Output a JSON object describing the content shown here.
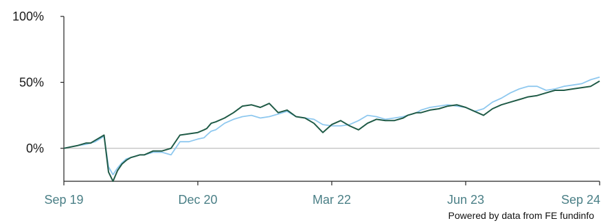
{
  "chart_data": {
    "type": "line",
    "x_start": "2019-09",
    "x_end": "2024-09",
    "x_ticks": [
      "Sep 19",
      "Dec 20",
      "Mar 22",
      "Jun 23",
      "Sep 24"
    ],
    "y_ticks": [
      "100%",
      "50%",
      "0%"
    ],
    "ylim": [
      -25,
      100
    ],
    "zero_line": true,
    "series": [
      {
        "color": "#1f5a46",
        "x": [
          0,
          1.5,
          2.5,
          3,
          3.5,
          4,
          4.5,
          5,
          5.5,
          6,
          6.5,
          7,
          7.5,
          8,
          8.5,
          9,
          10,
          11,
          12,
          13,
          14,
          15,
          15.7,
          16,
          16.5,
          17,
          18,
          19,
          20,
          21,
          22,
          23,
          24,
          25,
          26,
          27,
          28,
          29,
          30,
          31,
          32,
          33,
          34,
          35,
          36,
          37,
          38,
          38.5,
          39,
          39.5,
          40,
          41,
          42,
          43,
          44,
          45,
          46,
          47,
          48,
          49,
          50,
          51,
          52,
          53,
          54,
          55,
          56,
          57,
          58,
          59,
          60
        ],
        "y": [
          0,
          2,
          4,
          4,
          6,
          8,
          10,
          -18,
          -25,
          -17,
          -12,
          -9,
          -7,
          -6,
          -5,
          -5,
          -2,
          -2,
          0,
          10,
          11,
          12,
          14,
          15,
          19,
          20,
          23,
          27,
          32,
          33,
          31,
          34,
          27,
          29,
          24,
          23,
          19,
          12,
          18,
          21,
          17,
          14,
          19,
          22,
          21,
          21,
          23,
          25,
          26,
          27,
          27,
          29,
          30,
          32,
          33,
          31,
          28,
          25,
          30,
          33,
          35,
          37,
          39,
          40,
          42,
          44,
          44,
          45,
          46,
          47,
          51
        ]
      },
      {
        "color": "#8ec8ef",
        "x": [
          0,
          1.5,
          2.5,
          3,
          3.5,
          4,
          4.5,
          5,
          5.5,
          6,
          6.5,
          7,
          7.5,
          8,
          8.5,
          9,
          10,
          11,
          12,
          13,
          14,
          15,
          15.7,
          16,
          16.5,
          17,
          18,
          19,
          20,
          21,
          22,
          23,
          24,
          25,
          26,
          27,
          28,
          29,
          30,
          31,
          32,
          33,
          34,
          35,
          36,
          37,
          38,
          38.5,
          39,
          39.5,
          40,
          41,
          42,
          43,
          44,
          45,
          46,
          47,
          48,
          49,
          50,
          51,
          52,
          53,
          54,
          55,
          56,
          57,
          58,
          59,
          60
        ],
        "y": [
          0,
          2,
          3,
          4,
          5,
          7,
          9,
          -14,
          -20,
          -15,
          -11,
          -8,
          -7,
          -6,
          -5,
          -5,
          -3,
          -3,
          -5,
          5,
          5,
          7,
          8,
          10,
          13,
          14,
          19,
          22,
          24,
          25,
          23,
          24,
          26,
          28,
          24,
          23,
          22,
          18,
          17,
          17,
          18,
          21,
          25,
          24,
          22,
          23,
          24,
          25,
          26,
          27,
          29,
          31,
          32,
          33,
          32,
          31,
          28,
          30,
          35,
          38,
          42,
          45,
          47,
          47,
          44,
          45,
          47,
          48,
          49,
          52,
          54
        ]
      }
    ]
  },
  "credit": "Powered by data from FE fundinfo"
}
